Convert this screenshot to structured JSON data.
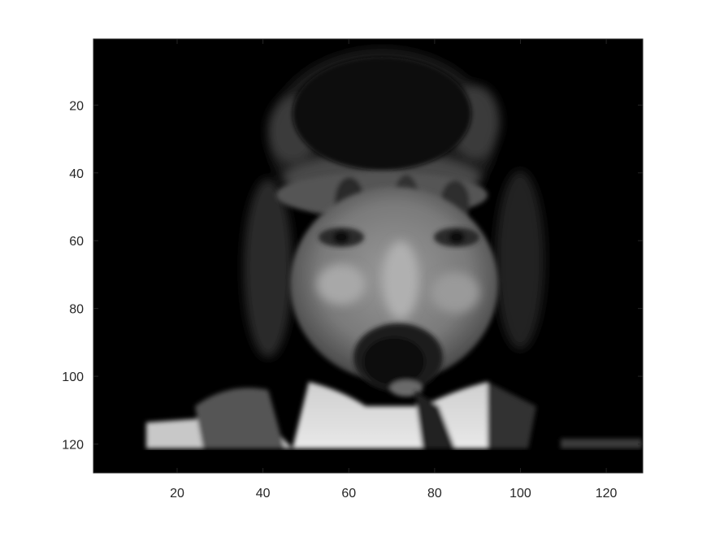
{
  "figure": {
    "type": "image-plot",
    "colormap": "gray",
    "image_size": [
      128,
      128
    ],
    "axes_color": "#262626",
    "grid": false,
    "content_description_hidden": true
  },
  "axes": {
    "x": {
      "range": [
        0.5,
        128.5
      ],
      "ticks": [
        20,
        40,
        60,
        80,
        100,
        120
      ],
      "tick_labels": [
        "20",
        "40",
        "60",
        "80",
        "100",
        "120"
      ]
    },
    "y": {
      "range": [
        0.5,
        128.5
      ],
      "direction": "reverse",
      "ticks": [
        20,
        40,
        60,
        80,
        100,
        120
      ],
      "tick_labels": [
        "20",
        "40",
        "60",
        "80",
        "100",
        "120"
      ]
    }
  }
}
